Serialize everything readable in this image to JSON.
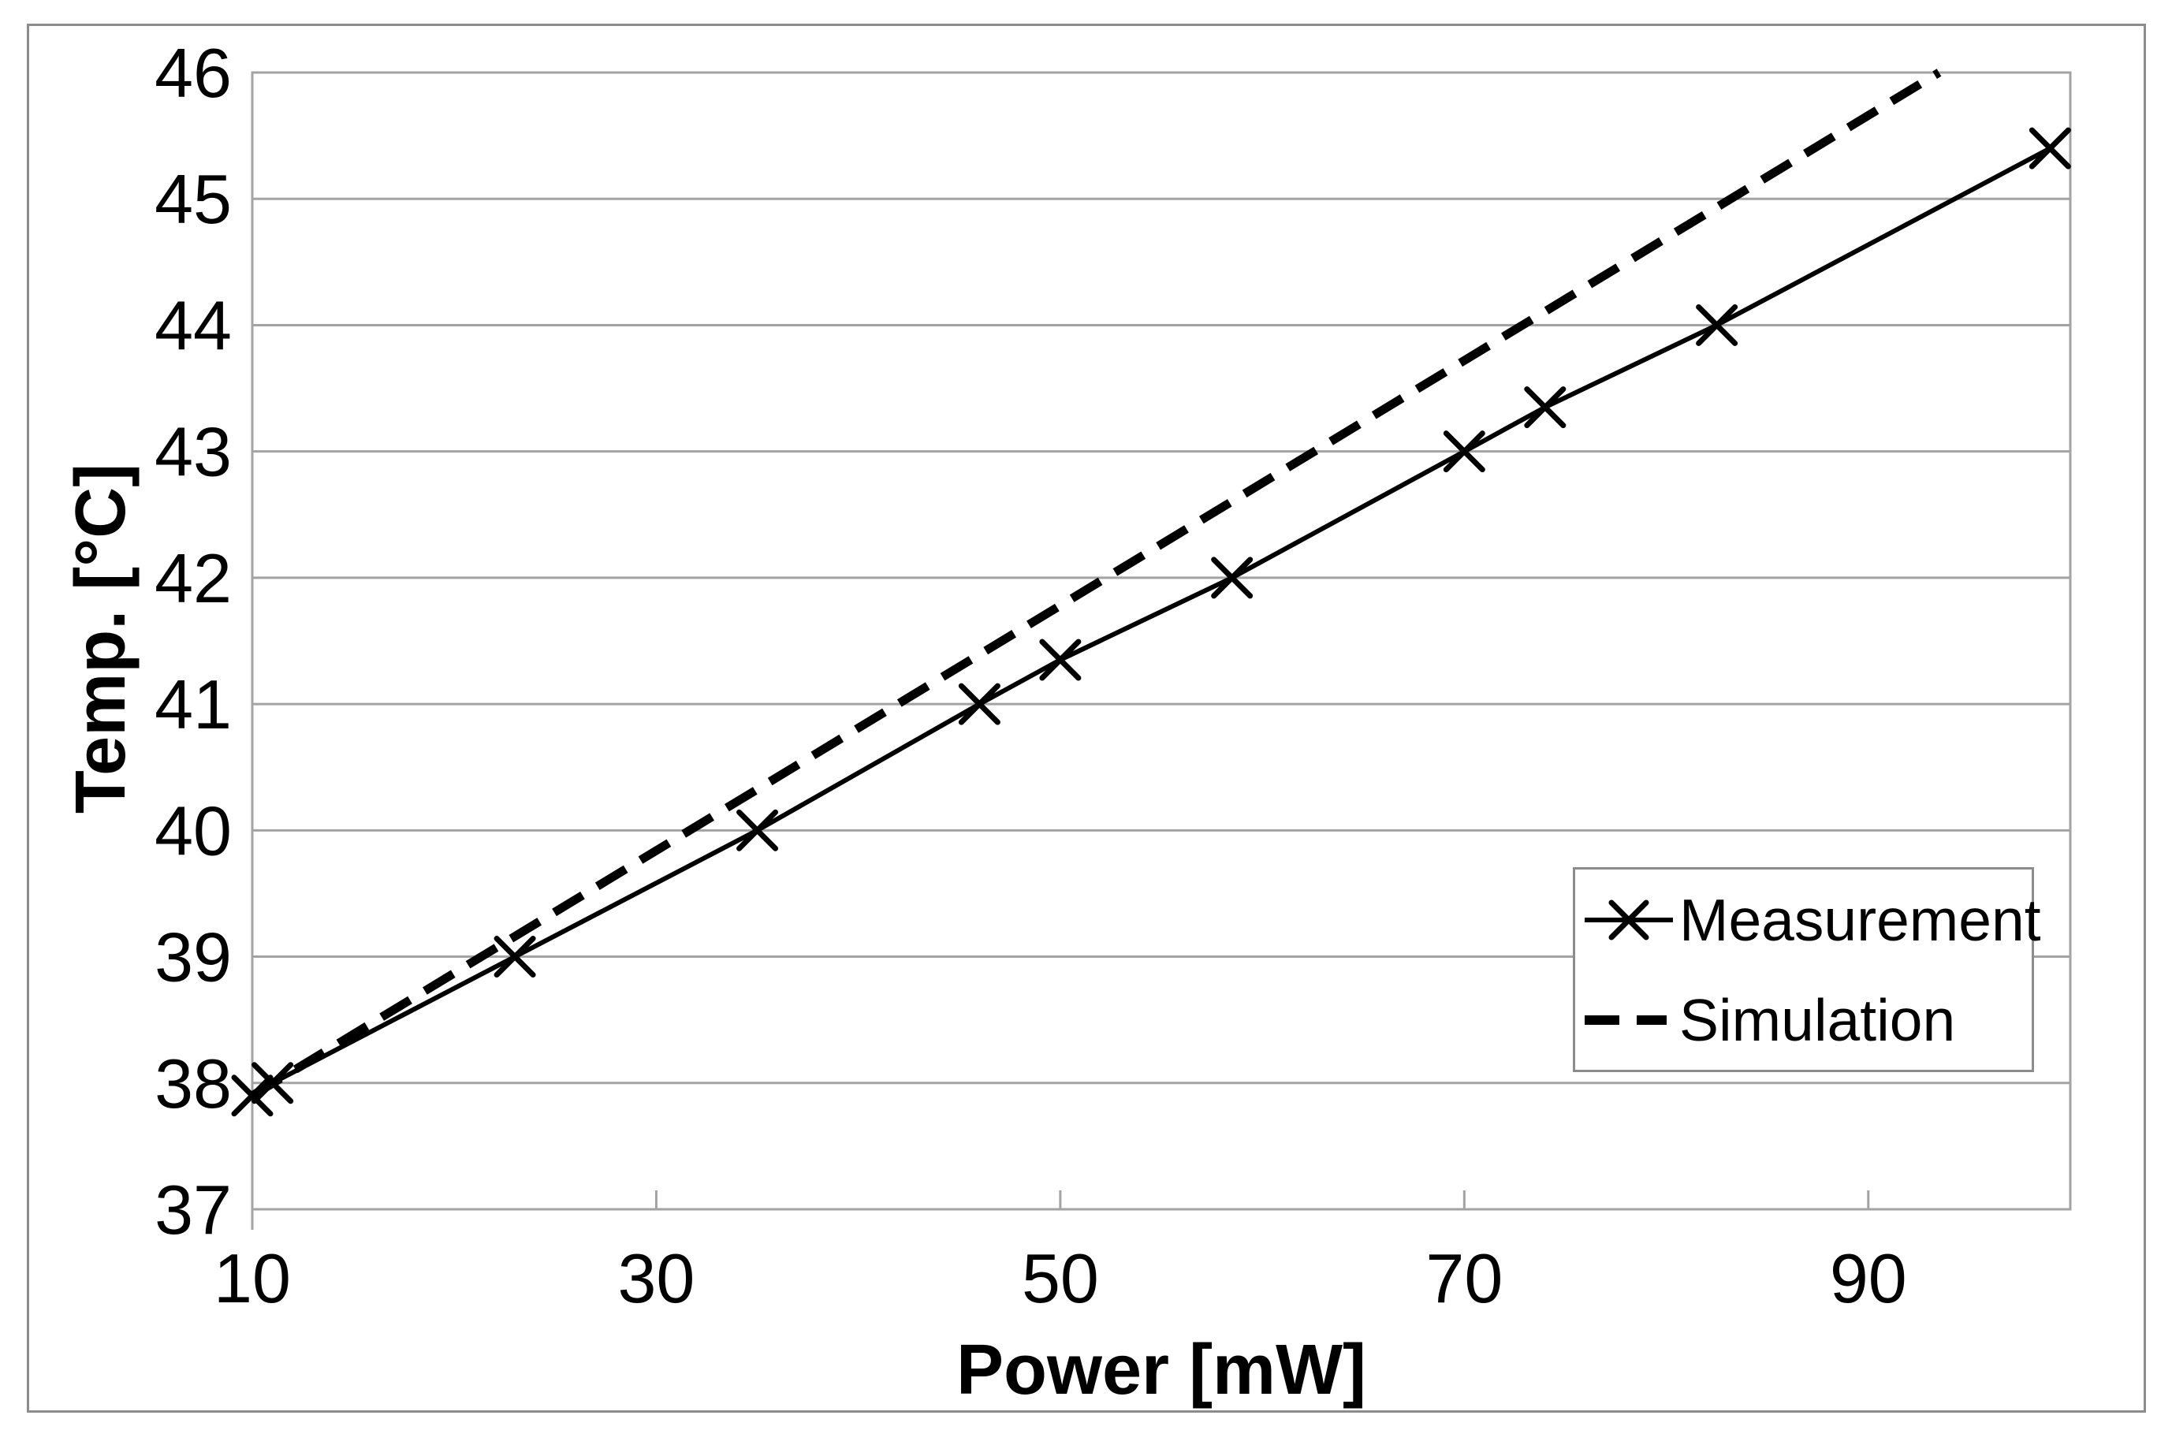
{
  "figure": {
    "background": "#ffffff",
    "border_color": "#8c8c8c",
    "gridline_color": "#a3a3a3",
    "series_color": "#000000"
  },
  "chart_data": {
    "type": "line",
    "title": "",
    "xlabel": "Power [mW]",
    "ylabel": "Temp. [°C]",
    "xlim": [
      10,
      100
    ],
    "ylim": [
      37,
      46
    ],
    "xticks": [
      10,
      30,
      50,
      70,
      90
    ],
    "yticks": [
      37,
      38,
      39,
      40,
      41,
      42,
      43,
      44,
      45,
      46
    ],
    "grid": "horizontal",
    "legend_position": "inside-right",
    "series": [
      {
        "name": "Measurement",
        "style": "solid",
        "marker": "x",
        "points": [
          [
            10,
            37.9
          ],
          [
            11,
            38.0
          ],
          [
            23,
            39.0
          ],
          [
            35,
            40.0
          ],
          [
            46,
            41.0
          ],
          [
            50,
            41.35
          ],
          [
            58.5,
            42.0
          ],
          [
            70,
            43.0
          ],
          [
            74,
            43.35
          ],
          [
            82.5,
            44.0
          ],
          [
            99,
            45.4
          ]
        ]
      },
      {
        "name": "Simulation",
        "style": "dashed",
        "marker": "none",
        "points": [
          [
            10,
            37.9
          ],
          [
            93.5,
            46.0
          ]
        ]
      }
    ]
  }
}
